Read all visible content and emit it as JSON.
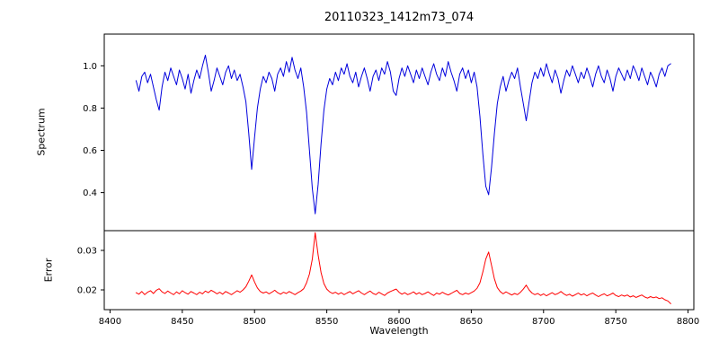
{
  "figure": {
    "background": "#ffffff"
  },
  "chart_data": {
    "type": "line",
    "title": "20110323_1412m73_074",
    "xlabel": "Wavelength",
    "legend": "none",
    "grid": false,
    "x_start": 8418,
    "x_step": 2,
    "xlim": [
      8396,
      8804
    ],
    "x_ticks": [
      8400,
      8450,
      8500,
      8550,
      8600,
      8650,
      8700,
      8750,
      8800
    ],
    "x_tick_labels": [
      "8400",
      "8450",
      "8500",
      "8550",
      "8600",
      "8650",
      "8700",
      "8750",
      "8800"
    ],
    "subplots": [
      {
        "name": "spectrum-subplot",
        "ylabel": "Spectrum",
        "color": "#0000dd",
        "ylim": [
          0.22,
          1.15
        ],
        "y_ticks": [
          1.0,
          0.8,
          0.6,
          0.4
        ],
        "y_tick_labels": [
          "1.0",
          "0.8",
          "0.6",
          "0.4"
        ],
        "absorption_line_centers": [
          8498,
          8542,
          8662,
          8688
        ],
        "values": [
          0.93,
          0.88,
          0.95,
          0.97,
          0.92,
          0.96,
          0.9,
          0.84,
          0.79,
          0.9,
          0.97,
          0.93,
          0.99,
          0.95,
          0.91,
          0.98,
          0.94,
          0.89,
          0.96,
          0.87,
          0.93,
          0.98,
          0.94,
          1.0,
          1.05,
          0.97,
          0.88,
          0.93,
          0.99,
          0.95,
          0.91,
          0.97,
          1.0,
          0.94,
          0.98,
          0.93,
          0.96,
          0.9,
          0.83,
          0.68,
          0.51,
          0.66,
          0.8,
          0.89,
          0.95,
          0.92,
          0.97,
          0.94,
          0.88,
          0.96,
          0.99,
          0.95,
          1.02,
          0.97,
          1.04,
          0.98,
          0.94,
          0.99,
          0.9,
          0.78,
          0.6,
          0.42,
          0.3,
          0.44,
          0.63,
          0.79,
          0.89,
          0.94,
          0.91,
          0.97,
          0.93,
          0.99,
          0.96,
          1.01,
          0.95,
          0.92,
          0.97,
          0.9,
          0.95,
          0.99,
          0.94,
          0.88,
          0.95,
          0.98,
          0.93,
          0.99,
          0.96,
          1.02,
          0.97,
          0.88,
          0.86,
          0.94,
          0.99,
          0.95,
          1.0,
          0.96,
          0.92,
          0.98,
          0.94,
          0.99,
          0.95,
          0.91,
          0.97,
          1.01,
          0.96,
          0.93,
          0.99,
          0.95,
          1.02,
          0.97,
          0.93,
          0.88,
          0.96,
          0.99,
          0.94,
          0.98,
          0.92,
          0.97,
          0.9,
          0.76,
          0.58,
          0.43,
          0.39,
          0.52,
          0.68,
          0.82,
          0.9,
          0.95,
          0.88,
          0.93,
          0.97,
          0.94,
          0.99,
          0.9,
          0.82,
          0.74,
          0.83,
          0.92,
          0.97,
          0.94,
          0.99,
          0.95,
          1.01,
          0.96,
          0.92,
          0.98,
          0.94,
          0.87,
          0.93,
          0.98,
          0.95,
          1.0,
          0.96,
          0.92,
          0.97,
          0.94,
          0.99,
          0.95,
          0.9,
          0.96,
          1.0,
          0.95,
          0.92,
          0.98,
          0.94,
          0.88,
          0.95,
          0.99,
          0.96,
          0.93,
          0.98,
          0.94,
          1.0,
          0.97,
          0.93,
          0.99,
          0.95,
          0.91,
          0.97,
          0.94,
          0.9,
          0.96,
          0.99,
          0.95,
          1.0,
          1.01
        ]
      },
      {
        "name": "error-subplot",
        "ylabel": "Error",
        "color": "#ff0000",
        "ylim": [
          0.015,
          0.035
        ],
        "y_ticks": [
          0.03,
          0.02
        ],
        "y_tick_labels": [
          "0.03",
          "0.02"
        ],
        "values": [
          0.0193,
          0.0189,
          0.0196,
          0.0188,
          0.0194,
          0.0198,
          0.0191,
          0.0199,
          0.0203,
          0.0195,
          0.0191,
          0.0197,
          0.0192,
          0.0188,
          0.0195,
          0.019,
          0.0198,
          0.0193,
          0.0189,
          0.0196,
          0.0192,
          0.0188,
          0.0194,
          0.019,
          0.0197,
          0.0193,
          0.0199,
          0.0195,
          0.019,
          0.0194,
          0.0189,
          0.0196,
          0.0192,
          0.0188,
          0.0193,
          0.0198,
          0.0194,
          0.02,
          0.0208,
          0.0222,
          0.0238,
          0.022,
          0.0205,
          0.0196,
          0.0192,
          0.0195,
          0.019,
          0.0194,
          0.0199,
          0.0193,
          0.0189,
          0.0194,
          0.0191,
          0.0196,
          0.0192,
          0.0188,
          0.0193,
          0.0197,
          0.0203,
          0.0218,
          0.024,
          0.0278,
          0.0345,
          0.0288,
          0.0244,
          0.0216,
          0.0202,
          0.0195,
          0.0191,
          0.0194,
          0.0189,
          0.0193,
          0.0188,
          0.0192,
          0.0196,
          0.019,
          0.0194,
          0.0198,
          0.0192,
          0.0188,
          0.0193,
          0.0197,
          0.0191,
          0.0188,
          0.0194,
          0.019,
          0.0186,
          0.0192,
          0.0196,
          0.0199,
          0.0202,
          0.0194,
          0.0189,
          0.0193,
          0.0188,
          0.0191,
          0.0195,
          0.0189,
          0.0193,
          0.0188,
          0.0191,
          0.0195,
          0.019,
          0.0186,
          0.0192,
          0.0189,
          0.0194,
          0.019,
          0.0187,
          0.0191,
          0.0195,
          0.0199,
          0.0191,
          0.0188,
          0.0192,
          0.0189,
          0.0193,
          0.0197,
          0.0204,
          0.0218,
          0.0246,
          0.0278,
          0.0296,
          0.0262,
          0.0228,
          0.0206,
          0.0196,
          0.019,
          0.0195,
          0.0191,
          0.0187,
          0.0191,
          0.0188,
          0.0194,
          0.0202,
          0.0212,
          0.02,
          0.0192,
          0.0188,
          0.0191,
          0.0186,
          0.019,
          0.0185,
          0.0189,
          0.0193,
          0.0188,
          0.0191,
          0.0196,
          0.019,
          0.0186,
          0.0189,
          0.0184,
          0.0188,
          0.0192,
          0.0187,
          0.019,
          0.0185,
          0.0189,
          0.0192,
          0.0187,
          0.0183,
          0.0187,
          0.019,
          0.0185,
          0.0188,
          0.0192,
          0.0186,
          0.0183,
          0.0187,
          0.0184,
          0.0187,
          0.0182,
          0.0185,
          0.0181,
          0.0184,
          0.0187,
          0.0182,
          0.0179,
          0.0183,
          0.018,
          0.0182,
          0.0178,
          0.018,
          0.0175,
          0.0172,
          0.0165
        ]
      }
    ]
  }
}
